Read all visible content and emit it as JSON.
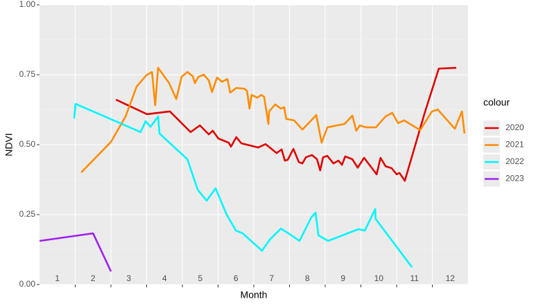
{
  "chart_data": {
    "type": "line",
    "xlabel": "Month",
    "ylabel": "NDVI",
    "legend_title": "colour",
    "legend": "right",
    "grid": true,
    "xlim": [
      0,
      12
    ],
    "ylim": [
      0,
      1
    ],
    "yticks": [
      {
        "value": 0,
        "label": "0.00"
      },
      {
        "value": 0.25,
        "label": "0.25"
      },
      {
        "value": 0.5,
        "label": "0.50"
      },
      {
        "value": 0.75,
        "label": "0.75"
      },
      {
        "value": 1,
        "label": "1.00"
      }
    ],
    "xticks": [
      {
        "value": 0.5,
        "label": "1"
      },
      {
        "value": 1.5,
        "label": "2"
      },
      {
        "value": 2.5,
        "label": "3"
      },
      {
        "value": 3.5,
        "label": "4"
      },
      {
        "value": 4.5,
        "label": "5"
      },
      {
        "value": 5.5,
        "label": "6"
      },
      {
        "value": 6.5,
        "label": "7"
      },
      {
        "value": 7.5,
        "label": "8"
      },
      {
        "value": 8.5,
        "label": "9"
      },
      {
        "value": 9.5,
        "label": "10"
      },
      {
        "value": 10.5,
        "label": "11"
      },
      {
        "value": 11.5,
        "label": "12"
      }
    ],
    "xgrid": [
      1,
      2,
      3,
      4,
      5,
      6,
      7,
      8,
      9,
      10,
      11
    ],
    "series": [
      {
        "name": "2020",
        "color": "#e00000",
        "x": [
          2.14,
          3.01,
          3.65,
          4.23,
          4.49,
          4.74,
          4.85,
          5.01,
          5.3,
          5.36,
          5.51,
          5.65,
          6.12,
          6.33,
          6.64,
          6.78,
          6.87,
          6.95,
          7.11,
          7.26,
          7.36,
          7.46,
          7.63,
          7.77,
          7.86,
          7.94,
          8.06,
          8.23,
          8.37,
          8.47,
          8.56,
          8.76,
          8.91,
          9.09,
          9.44,
          9.55,
          9.69,
          9.86,
          10.0,
          10.08,
          10.23,
          10.78,
          11.18,
          11.67
        ],
        "values": [
          0.661,
          0.609,
          0.619,
          0.545,
          0.569,
          0.537,
          0.55,
          0.522,
          0.507,
          0.493,
          0.527,
          0.505,
          0.49,
          0.502,
          0.47,
          0.483,
          0.443,
          0.446,
          0.485,
          0.438,
          0.433,
          0.455,
          0.463,
          0.448,
          0.408,
          0.455,
          0.46,
          0.433,
          0.443,
          0.428,
          0.458,
          0.448,
          0.418,
          0.453,
          0.394,
          0.453,
          0.423,
          0.416,
          0.394,
          0.399,
          0.371,
          0.611,
          0.772,
          0.775
        ]
      },
      {
        "name": "2021",
        "color": "#ff8c00",
        "x": [
          1.17,
          2.0,
          2.41,
          2.72,
          2.99,
          3.15,
          3.24,
          3.32,
          3.63,
          3.83,
          3.98,
          4.14,
          4.29,
          4.35,
          4.45,
          4.6,
          4.74,
          4.83,
          4.97,
          5.11,
          5.26,
          5.34,
          5.51,
          5.73,
          5.81,
          5.88,
          5.94,
          6.1,
          6.21,
          6.29,
          6.41,
          6.43,
          6.6,
          6.76,
          6.85,
          6.91,
          7.13,
          7.36,
          7.61,
          7.75,
          7.9,
          8.06,
          8.33,
          8.54,
          8.76,
          8.87,
          8.97,
          9.15,
          9.42,
          9.69,
          9.88,
          10.04,
          10.21,
          10.66,
          10.99,
          11.15,
          11.63,
          11.83,
          11.9
        ],
        "values": [
          0.401,
          0.51,
          0.601,
          0.708,
          0.748,
          0.76,
          0.641,
          0.775,
          0.72,
          0.663,
          0.743,
          0.76,
          0.745,
          0.72,
          0.743,
          0.75,
          0.73,
          0.688,
          0.74,
          0.725,
          0.735,
          0.686,
          0.703,
          0.7,
          0.693,
          0.629,
          0.678,
          0.668,
          0.678,
          0.671,
          0.574,
          0.619,
          0.644,
          0.629,
          0.634,
          0.592,
          0.587,
          0.554,
          0.587,
          0.606,
          0.507,
          0.562,
          0.569,
          0.574,
          0.604,
          0.55,
          0.569,
          0.562,
          0.562,
          0.601,
          0.614,
          0.577,
          0.587,
          0.552,
          0.619,
          0.626,
          0.557,
          0.619,
          0.54
        ]
      },
      {
        "name": "2022",
        "color": "#00f5ff",
        "x": [
          0.97,
          1.01,
          2.83,
          2.97,
          3.11,
          3.32,
          3.36,
          4.14,
          4.43,
          4.68,
          4.93,
          5.24,
          5.5,
          5.69,
          6.23,
          6.45,
          6.76,
          7.03,
          7.28,
          7.61,
          7.73,
          7.81,
          8.08,
          8.93,
          9.11,
          9.4,
          9.41,
          10.43
        ],
        "values": [
          0.594,
          0.646,
          0.545,
          0.584,
          0.564,
          0.601,
          0.54,
          0.448,
          0.339,
          0.3,
          0.344,
          0.25,
          0.193,
          0.183,
          0.121,
          0.161,
          0.2,
          0.178,
          0.156,
          0.24,
          0.257,
          0.176,
          0.156,
          0.198,
          0.193,
          0.27,
          0.235,
          0.062
        ]
      },
      {
        "name": "2023",
        "color": "#a020f0",
        "x": [
          0.0,
          1.5,
          2.0
        ],
        "values": [
          0.156,
          0.183,
          0.047
        ]
      }
    ]
  }
}
